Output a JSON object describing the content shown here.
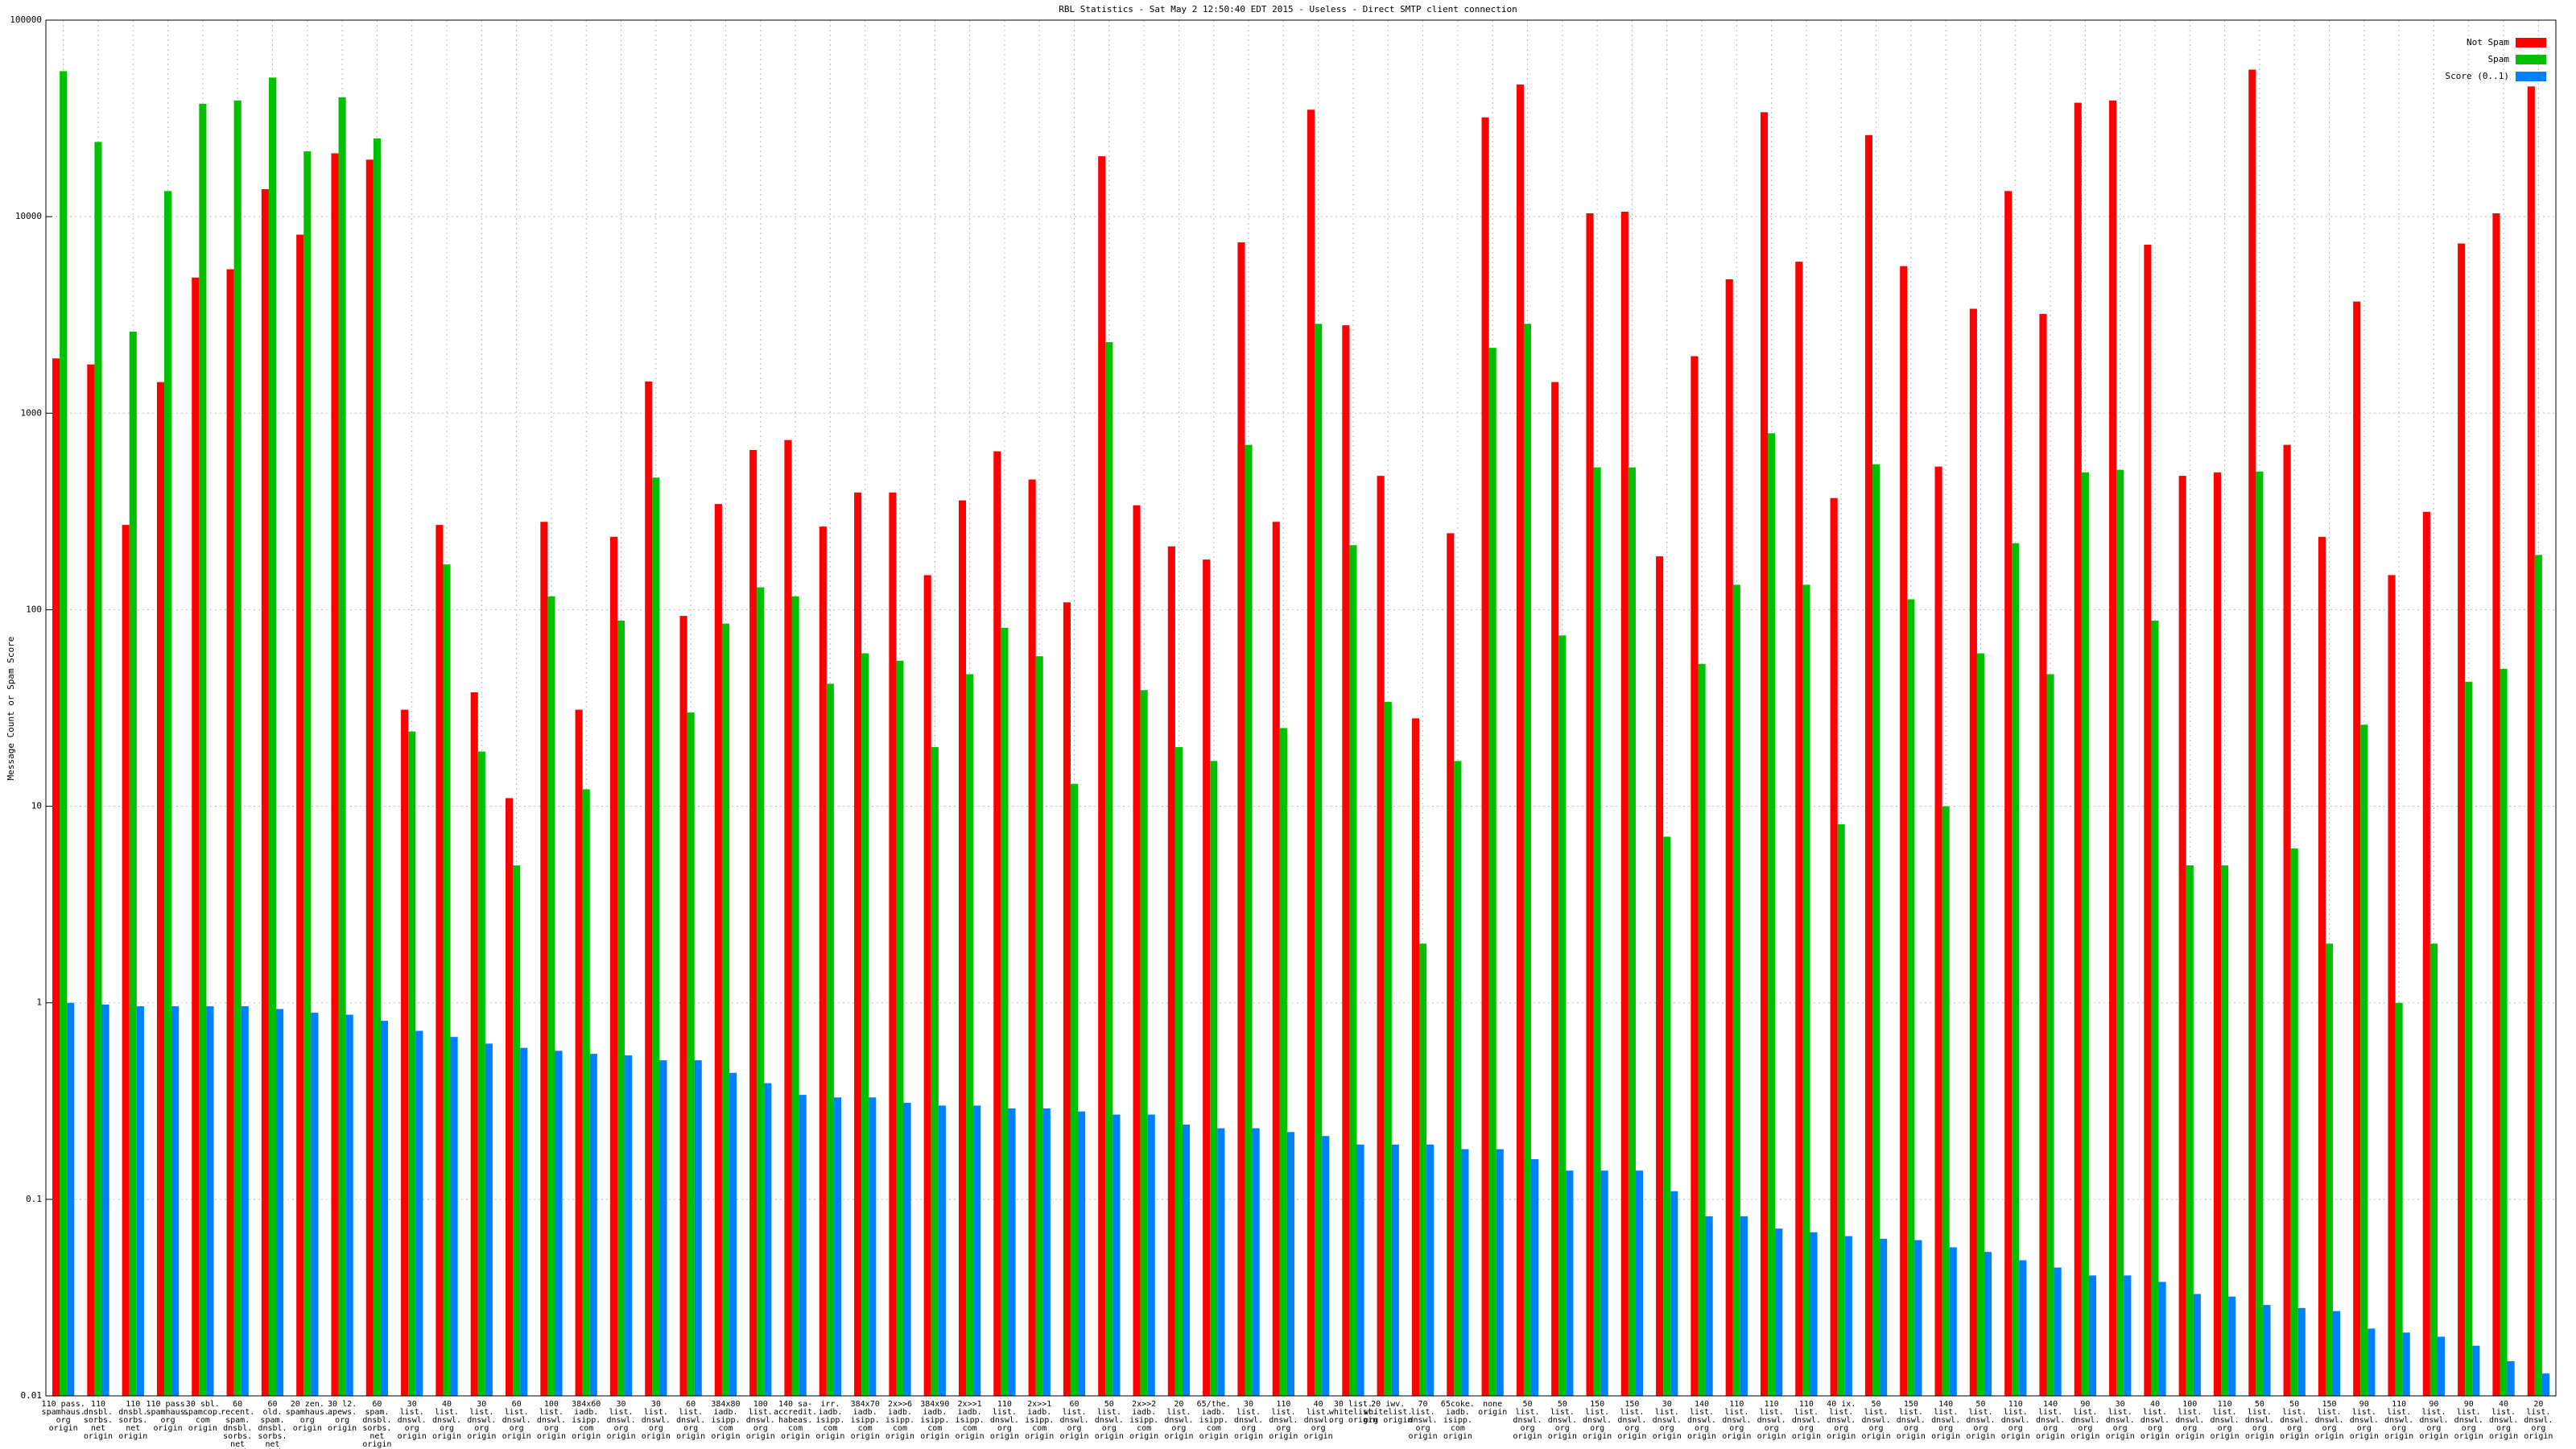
{
  "chart_data": {
    "type": "bar",
    "title": "RBL Statistics - Sat May  2 12:50:40 EDT 2015 - Useless - Direct SMTP client connection",
    "y_label": "Message Count or Spam Score",
    "log_scale": true,
    "grid": true,
    "legend": "top-right",
    "ylim": [
      0.01,
      100000
    ],
    "yticks": [
      0.01,
      0.1,
      1,
      10,
      100,
      1000,
      10000,
      100000
    ],
    "categories": [
      "110 pass. spamhaus. org origin",
      "110 dnsbl. sorbs. net origin",
      "110 dnsbl. sorbs. net origin",
      "110 pass. spamhaus. org origin",
      "30 sbl. spamcop. com origin",
      "60 recent. spam. dnsbl. sorbs. net origin",
      "60 old. spam. dnsbl. sorbs. net origin",
      "20 zen. spamhaus. org origin",
      "30 l2. apews. org origin",
      "60 spam. dnsbl. sorbs. net origin",
      "30 list. dnswl. org origin",
      "40 list. dnswl. org origin",
      "30 list. dnswl. org origin",
      "60 list. dnswl. org origin",
      "100 list. dnswl. org origin",
      "384x60 iadb. isipp. com origin",
      "30 list. dnswl. org origin",
      "30 list. dnswl. org origin",
      "60 list. dnswl. org origin",
      "384x80 iadb. isipp. com origin",
      "100 list. dnswl. org origin",
      "140 sa-accredit. habeas. com origin",
      "irr. iadb. isipp. com origin",
      "384x70 iadb. isipp. com origin",
      "2x>>6 iadb. isipp. com origin",
      "384x90 iadb. isipp. com origin",
      "2x>>1 iadb. isipp. com origin",
      "110 list. dnswl. org origin",
      "2x>>1 iadb. isipp. com origin",
      "60 list. dnswl. org origin",
      "50 list. dnswl. org origin",
      "2x>>2 iadb. isipp. com origin",
      "20 list. dnswl. org origin",
      "65/the. iadb. isipp. com origin",
      "30 list. dnswl. org origin",
      "110 list. dnswl. org origin",
      "40 list. dnswl. org origin",
      "30 list. whitelist. org origin",
      "20 iwv. whitelist. org origin",
      "70 list. dnswl. org origin",
      "65coke. iadb. isipp. com origin",
      "none origin",
      "50 list. dnswl. org origin",
      "50 list. dnswl. org origin",
      "150 list. dnswl. org origin",
      "150 list. dnswl. org origin",
      "30 list. dnswl. org origin",
      "140 list. dnswl. org origin",
      "110 list. dnswl. org origin",
      "110 list. dnswl. org origin",
      "110 list. dnswl. org origin",
      "40 ix. list. dnswl. org origin",
      "50 list. dnswl. org origin",
      "150 list. dnswl. org origin",
      "140 list. dnswl. org origin",
      "50 list. dnswl. org origin",
      "110 list. dnswl. org origin",
      "140 list. dnswl. org origin",
      "90 list. dnswl. org origin",
      "30 list. dnswl. org origin",
      "40 list. dnswl. org origin",
      "100 list. dnswl. org origin",
      "110 list. dnswl. org origin",
      "50 list. dnswl. org origin",
      "50 list. dnswl. org origin",
      "150 list. dnswl. org origin",
      "90 list. dnswl. org origin",
      "110 list. dnswl. org origin",
      "90 list. dnswl. org origin",
      "90 list. dnswl. org origin",
      "40 list. dnswl. org origin",
      "20 list. dnswl. org origin"
    ],
    "series": [
      {
        "name": "Not Spam",
        "color": "#ff0000",
        "values": [
          1900,
          1770,
          270,
          1440,
          4900,
          5400,
          13800,
          8100,
          21000,
          19500,
          31,
          270,
          38,
          11,
          280,
          31,
          235,
          1450,
          93,
          345,
          650,
          730,
          265,
          395,
          395,
          150,
          360,
          640,
          460,
          109,
          20300,
          340,
          210,
          180,
          7400,
          280,
          35000,
          2800,
          480,
          28,
          245,
          32000,
          47000,
          1440,
          10400,
          10600,
          187,
          1950,
          4800,
          34000,
          5900,
          370,
          26000,
          5600,
          535,
          3400,
          13500,
          3200,
          38000,
          39000,
          7200,
          480,
          500,
          56000,
          690,
          235,
          3700,
          150,
          315,
          7300,
          10400,
          46000
        ]
      },
      {
        "name": "Spam",
        "color": "#00c000",
        "values": [
          55000,
          24000,
          2600,
          13500,
          37500,
          39000,
          51000,
          21500,
          40500,
          25000,
          24,
          170,
          19,
          5,
          117,
          12.2,
          88,
          470,
          30,
          85,
          130,
          117,
          42,
          60,
          55,
          20,
          47,
          81,
          58,
          13,
          2300,
          39,
          20,
          17,
          690,
          25,
          2850,
          213,
          34,
          2,
          17,
          2150,
          2850,
          74,
          530,
          530,
          7,
          53,
          134,
          790,
          134,
          8.1,
          550,
          113,
          10,
          60,
          218,
          47,
          500,
          515,
          88,
          5,
          5,
          505,
          6.1,
          2,
          26,
          1,
          2,
          43,
          50,
          190
        ]
      },
      {
        "name": "Score (0..1)",
        "color": "#0080ff",
        "values": [
          1,
          0.98,
          0.96,
          0.96,
          0.96,
          0.96,
          0.93,
          0.89,
          0.87,
          0.81,
          0.72,
          0.67,
          0.62,
          0.59,
          0.57,
          0.55,
          0.54,
          0.51,
          0.51,
          0.44,
          0.39,
          0.34,
          0.33,
          0.33,
          0.31,
          0.3,
          0.3,
          0.29,
          0.29,
          0.28,
          0.27,
          0.27,
          0.24,
          0.23,
          0.23,
          0.22,
          0.21,
          0.19,
          0.19,
          0.19,
          0.18,
          0.18,
          0.16,
          0.14,
          0.14,
          0.14,
          0.11,
          0.082,
          0.082,
          0.071,
          0.068,
          0.065,
          0.063,
          0.062,
          0.057,
          0.054,
          0.049,
          0.045,
          0.041,
          0.041,
          0.038,
          0.033,
          0.032,
          0.029,
          0.028,
          0.027,
          0.022,
          0.021,
          0.02,
          0.018,
          0.015,
          0.013
        ]
      }
    ]
  }
}
